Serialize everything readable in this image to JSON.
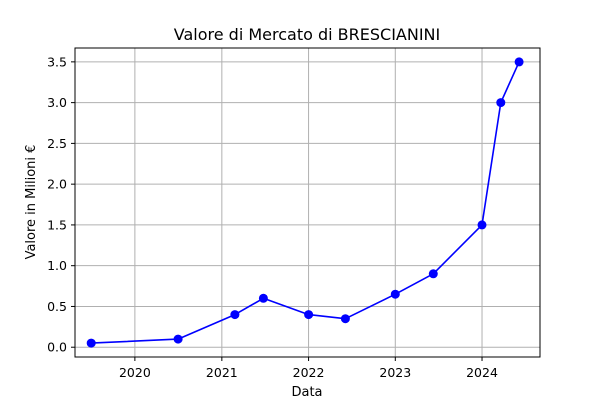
{
  "chart_data": {
    "type": "line",
    "title": "Valore di Mercato di BRESCIANINI",
    "xlabel": "Data",
    "ylabel": "Valore in Milioni €",
    "x_ticks": [
      "2020",
      "2021",
      "2022",
      "2023",
      "2024"
    ],
    "y_ticks": [
      "0.0",
      "0.5",
      "1.0",
      "1.5",
      "2.0",
      "2.5",
      "3.0",
      "3.5"
    ],
    "xlim": [
      "2019-04-24",
      "2024-09-01"
    ],
    "ylim": [
      -0.12,
      3.67
    ],
    "grid": true,
    "series": [
      {
        "color": "#0000ff",
        "marker": "circle",
        "x": [
          "2019-07-01",
          "2020-07-01",
          "2021-02-25",
          "2021-06-25",
          "2022-01-01",
          "2022-06-05",
          "2023-01-01",
          "2023-06-10",
          "2024-01-01",
          "2024-03-20",
          "2024-06-05"
        ],
        "values": [
          0.05,
          0.1,
          0.4,
          0.6,
          0.4,
          0.35,
          0.65,
          0.9,
          1.5,
          3.0,
          3.5
        ]
      }
    ]
  }
}
